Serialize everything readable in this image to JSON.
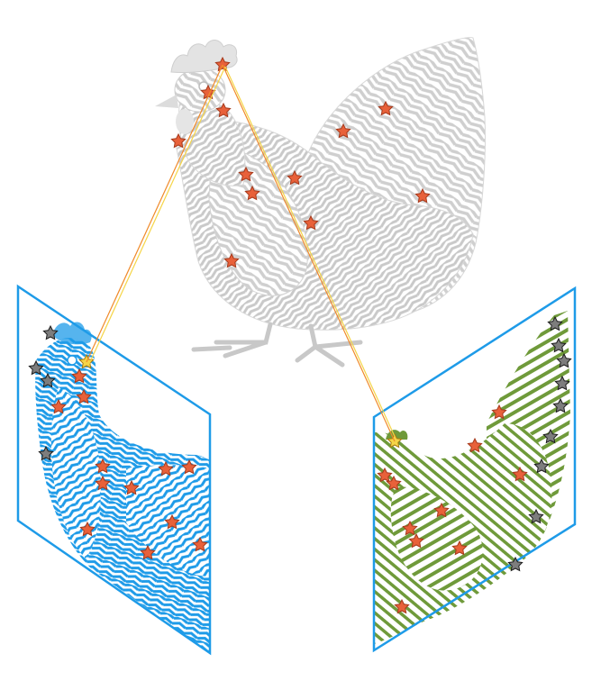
{
  "figure": {
    "background": "#ffffff",
    "colors": {
      "hen_gray": "#cfcfcf",
      "hen_gray_dark": "#b5b5b5",
      "left_panel": "#1e9be8",
      "right_panel": "#6f9a3a",
      "star_fill": "#e8613a",
      "star_stroke": "#a63a1c",
      "star_missing_fill": "#7d7d7d",
      "star_missing_stroke": "#1d1d1d",
      "highlight_star": "#f5d547",
      "line_orange": "#f08a2a",
      "line_yellow": "#f5d547"
    },
    "icons": {
      "keypoint": "star-icon",
      "missing_keypoint": "gray-star-icon",
      "highlight": "yellow-star-icon"
    }
  }
}
